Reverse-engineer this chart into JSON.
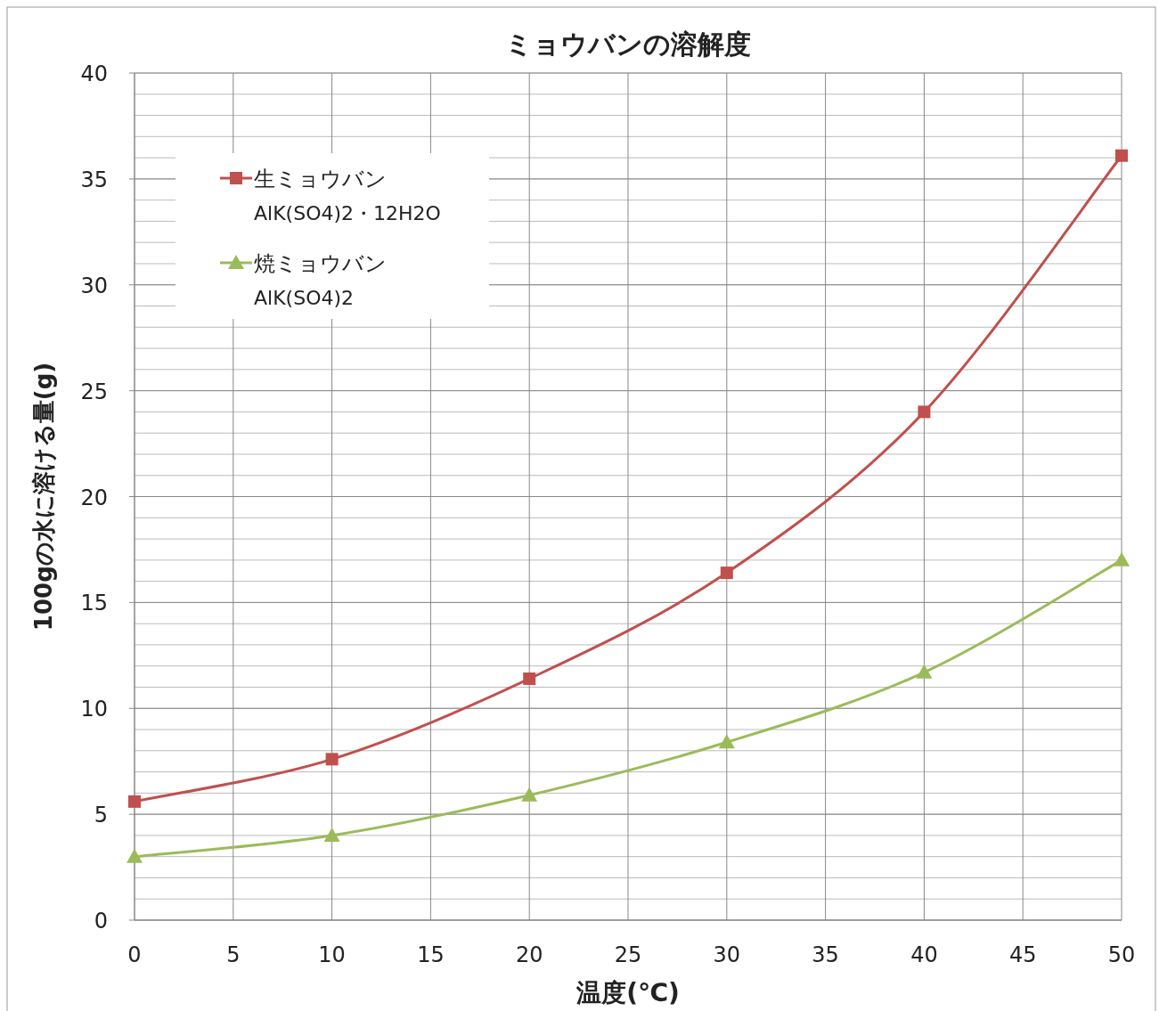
{
  "chart_data": {
    "type": "line",
    "title": "ミョウバンの溶解度",
    "xlabel": "温度(℃)",
    "ylabel": "100gの水に溶ける量(g)",
    "x": [
      0,
      10,
      20,
      30,
      40,
      50
    ],
    "series": [
      {
        "name": "生ミョウバン\nAlK(SO4)2・12H2O",
        "color": "#c0504d",
        "marker": "square",
        "values": [
          5.6,
          7.6,
          11.4,
          16.4,
          24.0,
          36.1
        ]
      },
      {
        "name": "焼ミョウバン\nAlK(SO4)2",
        "color": "#9bbb59",
        "marker": "triangle",
        "values": [
          3.0,
          4.0,
          5.9,
          8.4,
          11.7,
          17.0
        ]
      }
    ],
    "xlim": [
      0,
      50
    ],
    "xticks": [
      0,
      5,
      10,
      15,
      20,
      25,
      30,
      35,
      40,
      45,
      50
    ],
    "ylim": [
      0,
      40
    ],
    "yticks": [
      0,
      5,
      10,
      15,
      20,
      25,
      30,
      35,
      40
    ],
    "grid": true,
    "legend": "top left",
    "line_style": "solid"
  }
}
